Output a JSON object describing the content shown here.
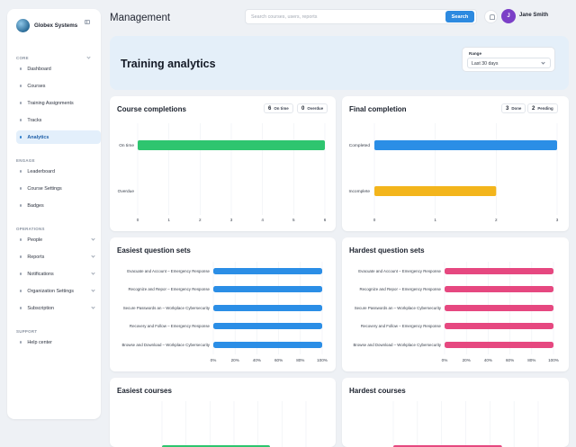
{
  "sidebar": {
    "brand": "Globex Systems",
    "sections": [
      {
        "label": "CORE",
        "collapsible": true,
        "items": [
          {
            "label": "Dashboard"
          },
          {
            "label": "Courses"
          },
          {
            "label": "Training Assignments"
          },
          {
            "label": "Tracks"
          },
          {
            "label": "Analytics",
            "active": true
          }
        ]
      },
      {
        "label": "ENGAGE",
        "collapsible": false,
        "items": [
          {
            "label": "Leaderboard"
          },
          {
            "label": "Course Settings"
          },
          {
            "label": "Badges"
          }
        ]
      },
      {
        "label": "OPERATIONS",
        "collapsible": false,
        "items": [
          {
            "label": "People",
            "expandable": true
          },
          {
            "label": "Reports",
            "expandable": true
          },
          {
            "label": "Notifications",
            "expandable": true
          },
          {
            "label": "Organization Settings",
            "expandable": true
          },
          {
            "label": "Subscription",
            "expandable": true
          }
        ]
      },
      {
        "label": "SUPPORT",
        "collapsible": false,
        "items": [
          {
            "label": "Help center"
          }
        ]
      }
    ]
  },
  "header": {
    "title": "Management",
    "search_placeholder": "Search courses, users, reports",
    "search_button": "Search",
    "user_initial": "J",
    "user_name": "Jane Smith"
  },
  "hero": {
    "title": "Training analytics",
    "range_label": "Range",
    "range_value": "Last 30 days"
  },
  "colors": {
    "green": "#2ec56f",
    "blue": "#2b8ee6",
    "amber": "#f3b51c",
    "pink": "#e64880",
    "accent": "#2d8ae0"
  },
  "chart_data": [
    {
      "id": "course_completions",
      "type": "bar",
      "orientation": "horizontal",
      "title": "Course completions",
      "badges": [
        {
          "value": "6",
          "label": "On time"
        },
        {
          "value": "0",
          "label": "Overdue"
        }
      ],
      "categories": [
        "On time",
        "Overdue"
      ],
      "values": [
        6,
        0
      ],
      "colors": [
        "#2ec56f",
        "#2ec56f"
      ],
      "xlim": [
        0,
        6
      ],
      "ticks": [
        "0",
        "1",
        "2",
        "3",
        "4",
        "5",
        "6"
      ],
      "grid": true
    },
    {
      "id": "final_completion",
      "type": "bar",
      "orientation": "horizontal",
      "title": "Final completion",
      "badges": [
        {
          "value": "3",
          "label": "Done"
        },
        {
          "value": "2",
          "label": "Pending"
        }
      ],
      "categories": [
        "Completed",
        "Incomplete"
      ],
      "values": [
        3,
        2
      ],
      "colors": [
        "#2b8ee6",
        "#f3b51c"
      ],
      "xlim": [
        0,
        3
      ],
      "ticks": [
        "0",
        "1",
        "2",
        "3"
      ],
      "grid": true
    },
    {
      "id": "easiest_question_sets",
      "type": "bar",
      "orientation": "horizontal",
      "title": "Easiest question sets",
      "categories": [
        "Evacuate and Account – Emergency Response",
        "Recognize and Repor – Emergency Response",
        "Secure Passwords an – Workplace Cybersecurity",
        "Recovery and Follow – Emergency Response",
        "Browse and Download – Workplace Cybersecurity"
      ],
      "values": [
        100,
        100,
        100,
        100,
        100
      ],
      "color": "#2b8ee6",
      "xlim": [
        0,
        100
      ],
      "ticks": [
        "0%",
        "20%",
        "40%",
        "60%",
        "80%",
        "100%"
      ],
      "grid": true
    },
    {
      "id": "hardest_question_sets",
      "type": "bar",
      "orientation": "horizontal",
      "title": "Hardest question sets",
      "categories": [
        "Evacuate and Account – Emergency Response",
        "Recognize and Repor – Emergency Response",
        "Secure Passwords an – Workplace Cybersecurity",
        "Recovery and Follow – Emergency Response",
        "Browse and Download – Workplace Cybersecurity"
      ],
      "values": [
        100,
        100,
        100,
        100,
        100
      ],
      "color": "#e64880",
      "xlim": [
        0,
        100
      ],
      "ticks": [
        "0%",
        "20%",
        "40%",
        "60%",
        "80%",
        "100%"
      ],
      "grid": true
    },
    {
      "id": "easiest_courses",
      "type": "bar",
      "orientation": "horizontal",
      "title": "Easiest courses",
      "color": "#2ec56f",
      "grid": true
    },
    {
      "id": "hardest_courses",
      "type": "bar",
      "orientation": "horizontal",
      "title": "Hardest courses",
      "color": "#e64880",
      "grid": true
    }
  ]
}
